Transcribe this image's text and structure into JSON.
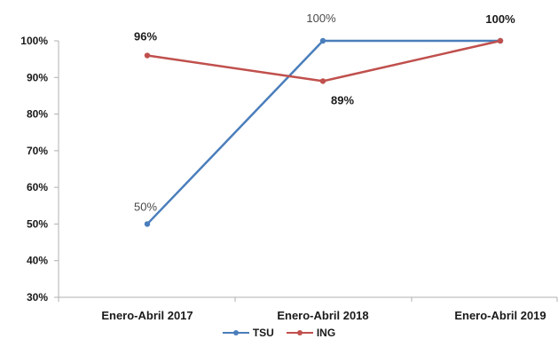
{
  "chart_data": {
    "type": "line",
    "categories": [
      "Enero-Abril 2017",
      "Enero-Abril 2018",
      "Enero-Abril 2019"
    ],
    "series": [
      {
        "name": "TSU",
        "values": [
          50,
          100,
          100
        ],
        "labels": [
          "50%",
          "100%",
          ""
        ],
        "color": "#4a7ebb"
      },
      {
        "name": "ING",
        "values": [
          96,
          89,
          100
        ],
        "labels": [
          "96%",
          "89%",
          "100%"
        ],
        "color": "#c0504d"
      }
    ],
    "y_ticks": [
      "30%",
      "40%",
      "50%",
      "60%",
      "70%",
      "80%",
      "90%",
      "100%"
    ],
    "ylim": [
      30,
      100
    ],
    "grid": false,
    "legend_position": "bottom"
  }
}
